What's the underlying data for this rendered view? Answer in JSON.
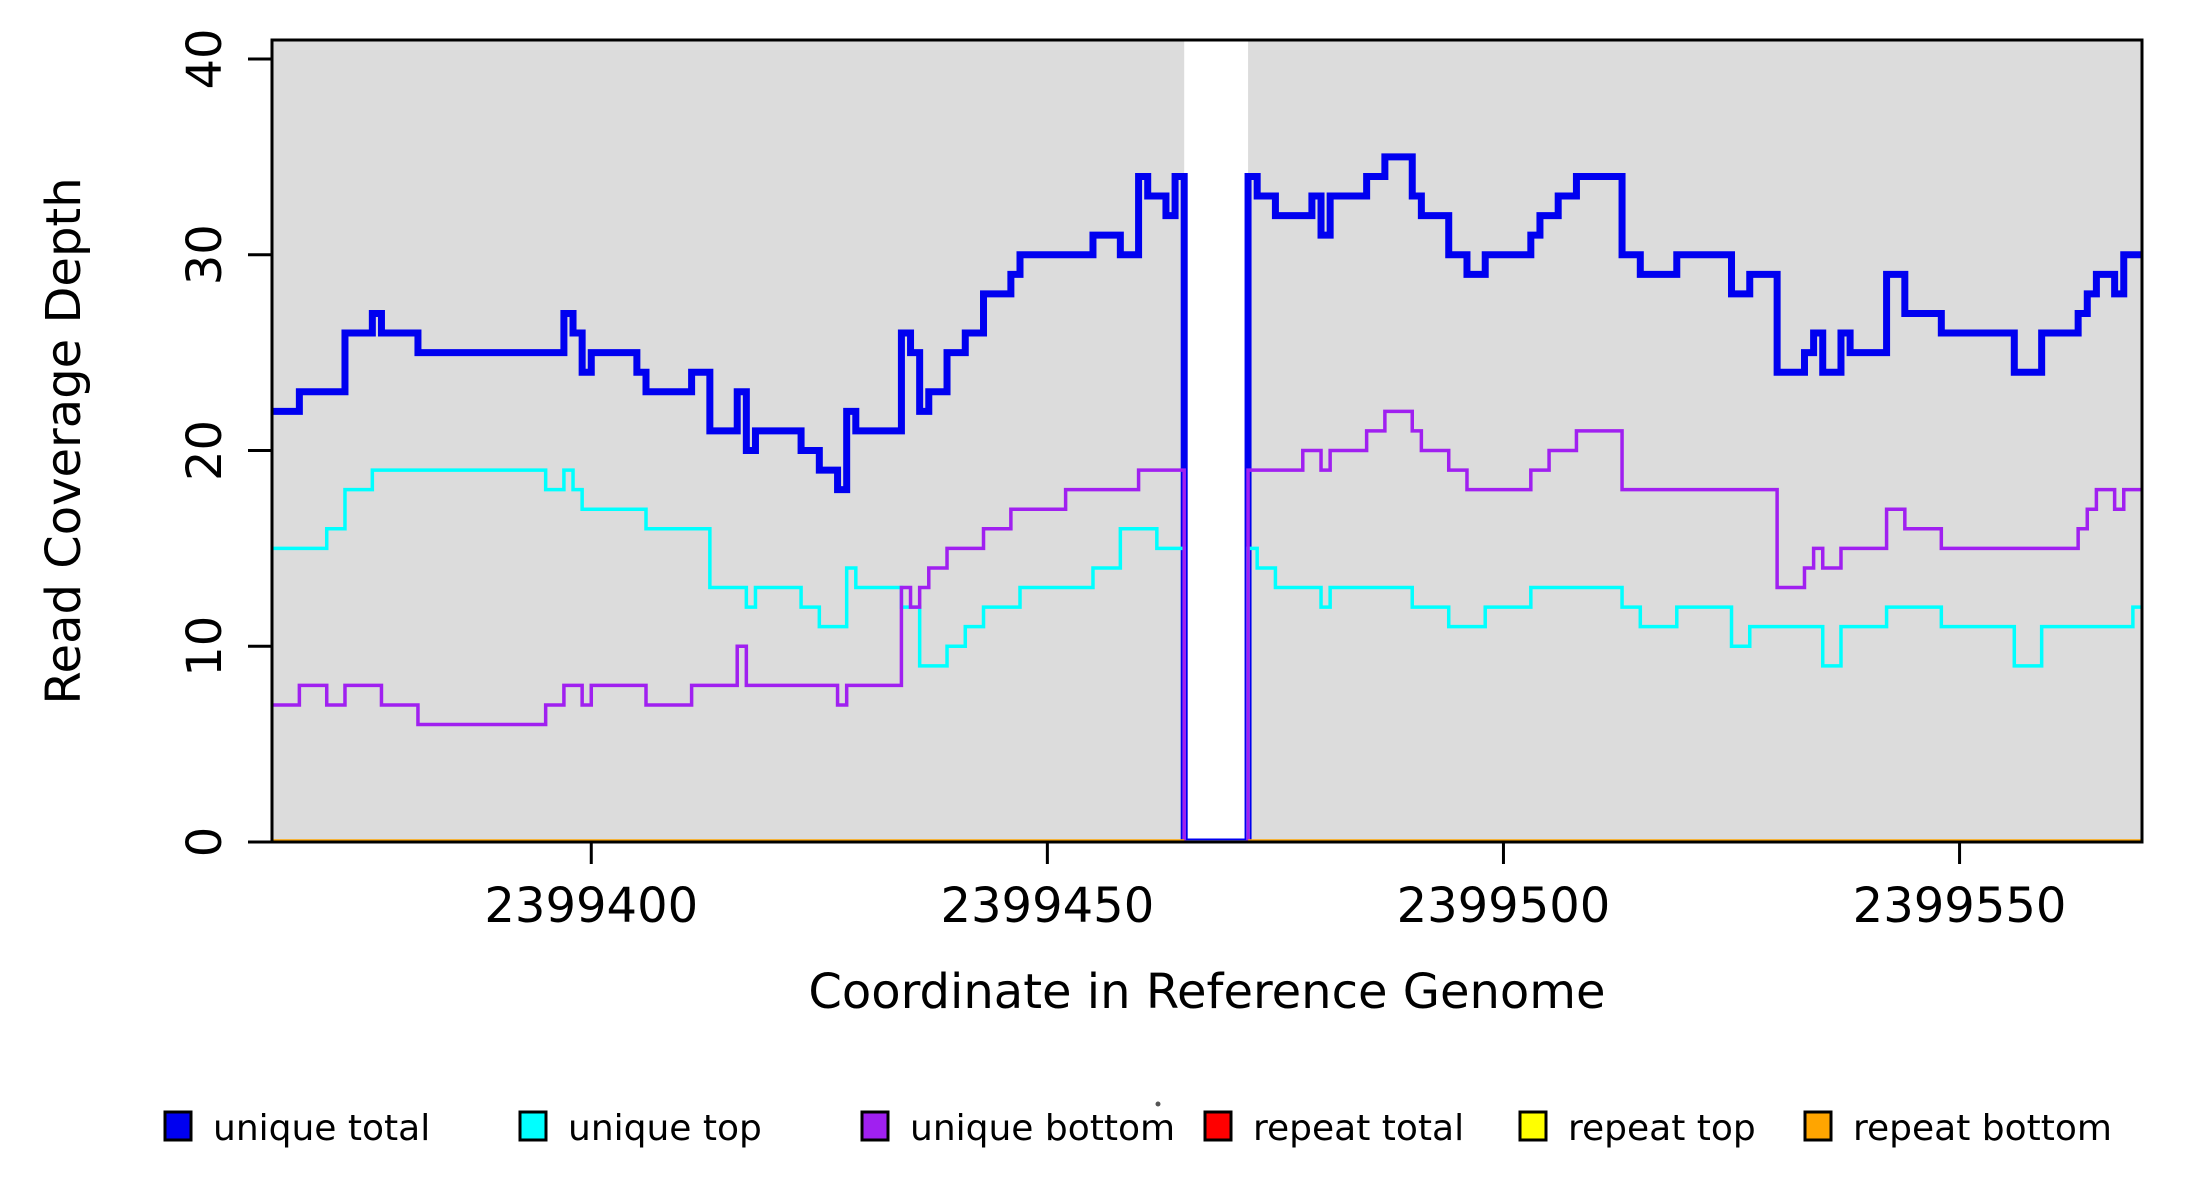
{
  "chart_data": {
    "type": "line",
    "subtype": "step",
    "title": "",
    "xlabel": "Coordinate in Reference Genome",
    "ylabel": "Read Coverage Depth",
    "xlim": [
      2399365,
      2399570
    ],
    "ylim": [
      0,
      41
    ],
    "x_ticks": [
      "2399400",
      "2399450",
      "2399500",
      "2399550"
    ],
    "x_tick_values": [
      2399400,
      2399450,
      2399500,
      2399550
    ],
    "y_ticks": [
      "0",
      "10",
      "20",
      "30",
      "40"
    ],
    "y_tick_values": [
      0,
      10,
      20,
      30,
      40
    ],
    "grid": false,
    "panel_color": "#dcdcdc",
    "gap_band": {
      "start": 2399465,
      "end": 2399472,
      "color": "#ffffff"
    },
    "legend_position": "bottom-horizontal",
    "series": [
      {
        "name": "unique total",
        "color": "#0000f0",
        "line_width": 7,
        "breakpoints": [
          [
            2399365,
            22
          ],
          [
            2399368,
            23
          ],
          [
            2399373,
            26
          ],
          [
            2399376,
            27
          ],
          [
            2399377,
            26
          ],
          [
            2399381,
            25
          ],
          [
            2399397,
            27
          ],
          [
            2399398,
            26
          ],
          [
            2399399,
            24
          ],
          [
            2399400,
            25
          ],
          [
            2399405,
            24
          ],
          [
            2399406,
            23
          ],
          [
            2399411,
            24
          ],
          [
            2399413,
            21
          ],
          [
            2399416,
            23
          ],
          [
            2399417,
            20
          ],
          [
            2399418,
            21
          ],
          [
            2399423,
            20
          ],
          [
            2399425,
            19
          ],
          [
            2399427,
            18
          ],
          [
            2399428,
            22
          ],
          [
            2399429,
            21
          ],
          [
            2399434,
            26
          ],
          [
            2399435,
            25
          ],
          [
            2399436,
            22
          ],
          [
            2399437,
            23
          ],
          [
            2399439,
            25
          ],
          [
            2399441,
            26
          ],
          [
            2399443,
            28
          ],
          [
            2399446,
            29
          ],
          [
            2399447,
            30
          ],
          [
            2399455,
            31
          ],
          [
            2399458,
            30
          ],
          [
            2399460,
            34
          ],
          [
            2399461,
            33
          ],
          [
            2399463,
            32
          ],
          [
            2399464,
            34
          ],
          [
            2399465,
            0
          ],
          [
            2399472,
            34
          ],
          [
            2399473,
            33
          ],
          [
            2399475,
            32
          ],
          [
            2399479,
            33
          ],
          [
            2399480,
            31
          ],
          [
            2399481,
            33
          ],
          [
            2399485,
            34
          ],
          [
            2399487,
            35
          ],
          [
            2399490,
            33
          ],
          [
            2399491,
            32
          ],
          [
            2399494,
            30
          ],
          [
            2399496,
            29
          ],
          [
            2399498,
            30
          ],
          [
            2399503,
            31
          ],
          [
            2399504,
            32
          ],
          [
            2399506,
            33
          ],
          [
            2399508,
            34
          ],
          [
            2399513,
            30
          ],
          [
            2399515,
            29
          ],
          [
            2399519,
            30
          ],
          [
            2399525,
            28
          ],
          [
            2399527,
            29
          ],
          [
            2399530,
            24
          ],
          [
            2399533,
            25
          ],
          [
            2399534,
            26
          ],
          [
            2399535,
            24
          ],
          [
            2399537,
            26
          ],
          [
            2399538,
            25
          ],
          [
            2399542,
            29
          ],
          [
            2399544,
            27
          ],
          [
            2399548,
            26
          ],
          [
            2399556,
            24
          ],
          [
            2399559,
            26
          ],
          [
            2399563,
            27
          ],
          [
            2399564,
            28
          ],
          [
            2399565,
            29
          ],
          [
            2399567,
            28
          ],
          [
            2399568,
            30
          ]
        ]
      },
      {
        "name": "unique top",
        "color": "#00ffff",
        "line_width": 3.5,
        "breakpoints": [
          [
            2399365,
            15
          ],
          [
            2399371,
            16
          ],
          [
            2399373,
            18
          ],
          [
            2399376,
            19
          ],
          [
            2399395,
            18
          ],
          [
            2399397,
            19
          ],
          [
            2399398,
            18
          ],
          [
            2399399,
            17
          ],
          [
            2399406,
            16
          ],
          [
            2399413,
            13
          ],
          [
            2399417,
            12
          ],
          [
            2399418,
            13
          ],
          [
            2399423,
            12
          ],
          [
            2399425,
            11
          ],
          [
            2399428,
            14
          ],
          [
            2399429,
            13
          ],
          [
            2399434,
            12
          ],
          [
            2399436,
            9
          ],
          [
            2399439,
            10
          ],
          [
            2399441,
            11
          ],
          [
            2399443,
            12
          ],
          [
            2399447,
            13
          ],
          [
            2399455,
            14
          ],
          [
            2399458,
            16
          ],
          [
            2399462,
            15
          ],
          [
            2399465,
            0
          ],
          [
            2399472,
            15
          ],
          [
            2399473,
            14
          ],
          [
            2399475,
            13
          ],
          [
            2399480,
            12
          ],
          [
            2399481,
            13
          ],
          [
            2399490,
            12
          ],
          [
            2399494,
            11
          ],
          [
            2399498,
            12
          ],
          [
            2399503,
            13
          ],
          [
            2399513,
            12
          ],
          [
            2399515,
            11
          ],
          [
            2399519,
            12
          ],
          [
            2399525,
            10
          ],
          [
            2399527,
            11
          ],
          [
            2399535,
            9
          ],
          [
            2399537,
            11
          ],
          [
            2399542,
            12
          ],
          [
            2399548,
            11
          ],
          [
            2399556,
            9
          ],
          [
            2399559,
            11
          ],
          [
            2399569,
            12
          ]
        ]
      },
      {
        "name": "unique bottom",
        "color": "#a020f0",
        "line_width": 3.5,
        "breakpoints": [
          [
            2399365,
            7
          ],
          [
            2399368,
            8
          ],
          [
            2399371,
            7
          ],
          [
            2399373,
            8
          ],
          [
            2399377,
            7
          ],
          [
            2399381,
            6
          ],
          [
            2399395,
            7
          ],
          [
            2399397,
            8
          ],
          [
            2399399,
            7
          ],
          [
            2399400,
            8
          ],
          [
            2399406,
            7
          ],
          [
            2399411,
            8
          ],
          [
            2399416,
            10
          ],
          [
            2399417,
            8
          ],
          [
            2399427,
            7
          ],
          [
            2399428,
            8
          ],
          [
            2399434,
            13
          ],
          [
            2399435,
            12
          ],
          [
            2399436,
            13
          ],
          [
            2399437,
            14
          ],
          [
            2399439,
            15
          ],
          [
            2399443,
            16
          ],
          [
            2399446,
            17
          ],
          [
            2399452,
            18
          ],
          [
            2399460,
            19
          ],
          [
            2399465,
            0
          ],
          [
            2399472,
            19
          ],
          [
            2399478,
            20
          ],
          [
            2399480,
            19
          ],
          [
            2399481,
            20
          ],
          [
            2399485,
            21
          ],
          [
            2399487,
            22
          ],
          [
            2399490,
            21
          ],
          [
            2399491,
            20
          ],
          [
            2399494,
            19
          ],
          [
            2399496,
            18
          ],
          [
            2399503,
            19
          ],
          [
            2399505,
            20
          ],
          [
            2399508,
            21
          ],
          [
            2399513,
            18
          ],
          [
            2399530,
            13
          ],
          [
            2399533,
            14
          ],
          [
            2399534,
            15
          ],
          [
            2399535,
            14
          ],
          [
            2399537,
            15
          ],
          [
            2399542,
            17
          ],
          [
            2399544,
            16
          ],
          [
            2399548,
            15
          ],
          [
            2399563,
            16
          ],
          [
            2399564,
            17
          ],
          [
            2399565,
            18
          ],
          [
            2399567,
            17
          ],
          [
            2399568,
            18
          ]
        ]
      },
      {
        "name": "repeat total",
        "color": "#ff0000",
        "line_width": 5,
        "constant_value": 0,
        "segments": [
          [
            2399365,
            2399465
          ],
          [
            2399472,
            2399570
          ]
        ]
      },
      {
        "name": "repeat top",
        "color": "#ffff00",
        "line_width": 4.5,
        "constant_value": 0,
        "segments": [
          [
            2399365,
            2399465
          ],
          [
            2399472,
            2399570
          ]
        ]
      },
      {
        "name": "repeat bottom",
        "color": "#ffa500",
        "line_width": 4.5,
        "constant_value": 0,
        "segments": [
          [
            2399365,
            2399465
          ],
          [
            2399472,
            2399570
          ]
        ]
      }
    ],
    "legend": [
      {
        "label": "unique total",
        "color": "#0000f0"
      },
      {
        "label": "unique top",
        "color": "#00ffff"
      },
      {
        "label": "unique bottom",
        "color": "#a020f0"
      },
      {
        "label": "repeat total",
        "color": "#ff0000"
      },
      {
        "label": "repeat top",
        "color": "#ffff00"
      },
      {
        "label": "repeat bottom",
        "color": "#ffa500"
      }
    ]
  }
}
